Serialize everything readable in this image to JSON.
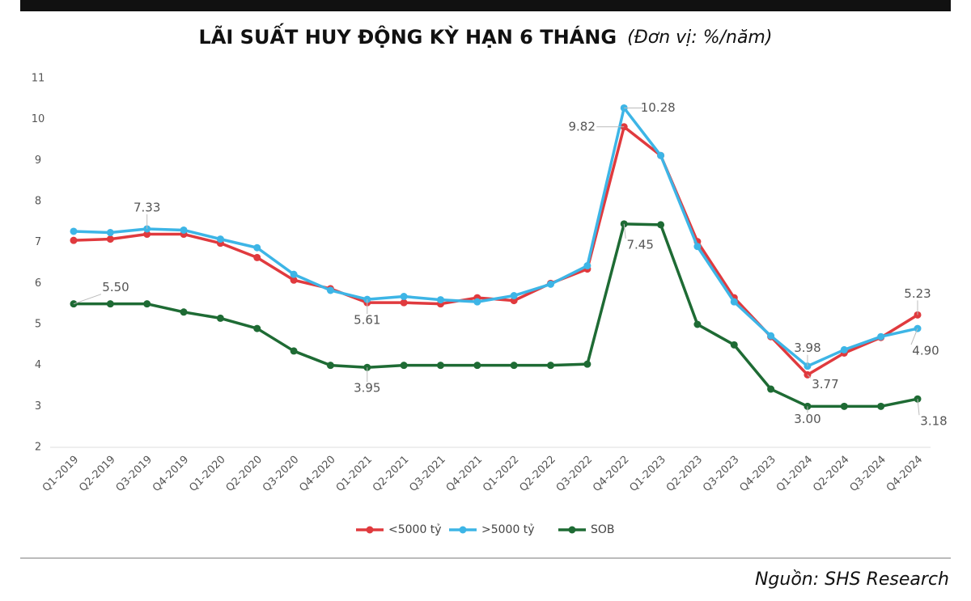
{
  "chart_data": {
    "type": "line",
    "title": "LÃI SUẤT HUY ĐỘNG KỲ HẠN 6 THÁNG",
    "subtitle": "(Đơn vị: %/năm)",
    "source": "Nguồn: SHS Research",
    "categories": [
      "Q1-2019",
      "Q2-2019",
      "Q3-2019",
      "Q4-2019",
      "Q1-2020",
      "Q2-2020",
      "Q3-2020",
      "Q4-2020",
      "Q1-2021",
      "Q2-2021",
      "Q3-2021",
      "Q4-2021",
      "Q1-2022",
      "Q2-2022",
      "Q3-2022",
      "Q4-2022",
      "Q1-2023",
      "Q2-2023",
      "Q3-2023",
      "Q4-2023",
      "Q1-2024",
      "Q2-2024",
      "Q3-2024",
      "Q4-2024"
    ],
    "series": [
      {
        "name": "<5000 tỷ",
        "color": "#e03a3e",
        "values": [
          7.05,
          7.08,
          7.2,
          7.2,
          6.98,
          6.63,
          6.08,
          5.87,
          5.53,
          5.53,
          5.5,
          5.65,
          5.58,
          6.0,
          6.35,
          9.82,
          9.12,
          7.02,
          5.65,
          4.7,
          3.77,
          4.3,
          4.68,
          5.23
        ],
        "value_labels": [
          null,
          null,
          null,
          null,
          null,
          null,
          null,
          null,
          null,
          null,
          null,
          null,
          null,
          null,
          null,
          "9.82",
          null,
          null,
          null,
          null,
          "3.77",
          null,
          null,
          "5.23"
        ]
      },
      {
        "name": ">5000 tỷ",
        "color": "#3db5e6",
        "values": [
          7.27,
          7.24,
          7.33,
          7.3,
          7.08,
          6.87,
          6.22,
          5.83,
          5.61,
          5.68,
          5.6,
          5.55,
          5.7,
          5.98,
          6.43,
          10.28,
          9.12,
          6.9,
          5.55,
          4.72,
          3.98,
          4.38,
          4.7,
          4.9
        ],
        "value_labels": [
          null,
          null,
          "7.33",
          null,
          null,
          null,
          null,
          null,
          "5.61",
          null,
          null,
          null,
          null,
          null,
          null,
          "10.28",
          null,
          null,
          null,
          null,
          "3.98",
          null,
          null,
          "4.90"
        ]
      },
      {
        "name": "SOB",
        "color": "#1e6b34",
        "values": [
          5.5,
          5.5,
          5.5,
          5.3,
          5.15,
          4.9,
          4.35,
          4.0,
          3.95,
          4.0,
          4.0,
          4.0,
          4.0,
          4.0,
          4.03,
          7.45,
          7.43,
          5.0,
          4.5,
          3.42,
          3.0,
          3.0,
          3.0,
          3.18
        ],
        "value_labels": [
          "5.50",
          null,
          null,
          null,
          null,
          null,
          null,
          null,
          "3.95",
          null,
          null,
          null,
          null,
          null,
          null,
          "7.45",
          null,
          null,
          null,
          null,
          "3.00",
          null,
          null,
          "3.18"
        ]
      }
    ],
    "ylim": [
      2,
      11
    ],
    "yticks": [
      2,
      3,
      4,
      5,
      6,
      7,
      8,
      9,
      10,
      11
    ],
    "grid": false
  }
}
